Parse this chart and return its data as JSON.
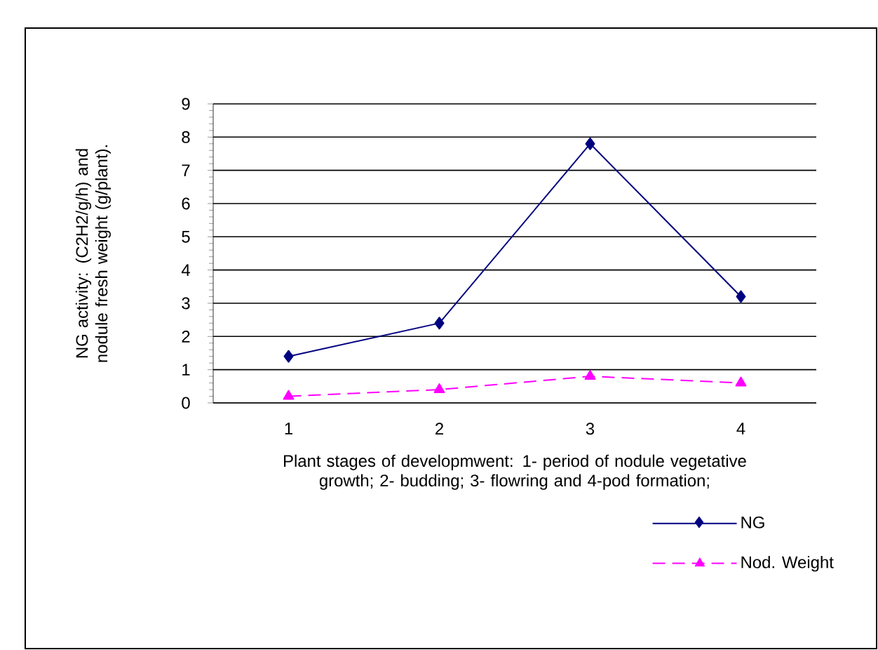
{
  "chart_data": {
    "type": "line",
    "xlabel": "Plant stages of developmwent:  1- period of nodule vegetative growth;  2- budding;  3- flowring and  4-pod formation;",
    "ylabel": "NG activity: (C2H2/g/h)  and nodule fresh  weight (g/plant).",
    "categories": [
      "1",
      "2",
      "3",
      "4"
    ],
    "ylim": [
      0,
      9
    ],
    "yticks": [
      0,
      1,
      2,
      3,
      4,
      5,
      6,
      7,
      8,
      9
    ],
    "grid": "y",
    "legend": "bottom right",
    "series": [
      {
        "name": "NG",
        "color": "#000080",
        "marker": "diamond",
        "line_style": "solid",
        "values": [
          1.4,
          2.4,
          7.8,
          3.2
        ]
      },
      {
        "name": "Nod. Weight",
        "color": "#ff00ff",
        "marker": "triangle",
        "line_style": "dashed",
        "values": [
          0.2,
          0.4,
          0.8,
          0.6
        ]
      }
    ]
  }
}
